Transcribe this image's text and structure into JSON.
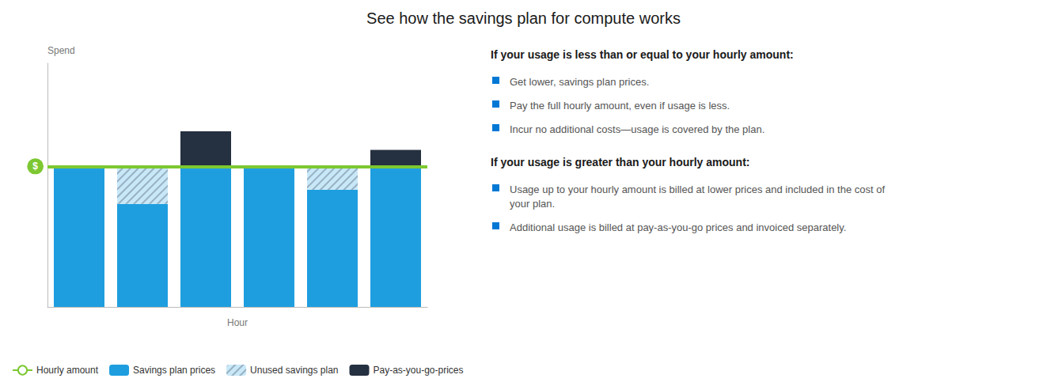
{
  "chart_data": {
    "type": "bar",
    "title": "See how the savings plan for compute works",
    "x_label": "Hour",
    "y_label": "Spend",
    "categories": [
      null,
      null,
      null,
      null,
      null,
      null
    ],
    "ylim": [
      0,
      5.2
    ],
    "tick_labels": false,
    "grid": false,
    "stacked": true,
    "legend": "bottom",
    "series": [
      {
        "name": "Hourly amount",
        "type": "hline",
        "color": "#7dc832",
        "value": 3.0
      },
      {
        "name": "Savings plan prices",
        "type": "bar",
        "color": "#1e9edf",
        "values": [
          3.0,
          2.2,
          3.0,
          3.0,
          2.5,
          3.0
        ]
      },
      {
        "name": "Unused savings plan",
        "type": "bar",
        "color": "#c8e8f8",
        "marker": "hatch",
        "values": [
          0.0,
          0.8,
          0.0,
          0.0,
          0.5,
          0.0
        ]
      },
      {
        "name": "Pay-as-you-go-prices",
        "type": "bar",
        "color": "#253040",
        "values": [
          0.0,
          0.0,
          0.75,
          0.0,
          0.0,
          0.35
        ]
      }
    ],
    "annotations": [
      {
        "text": "$"
      },
      {
        "heading": "If your usage is less than or equal to your hourly amount:",
        "bullets": [
          "Get lower, savings plan prices.",
          "Pay the full hourly amount, even if usage is less.",
          "Incur no additional costs—usage is covered by the plan."
        ]
      },
      {
        "heading": "If your usage is greater than your hourly amount:",
        "bullets": [
          "Usage up to your hourly amount is billed at lower prices and included in the cost of\nyour plan.",
          "Additional usage is billed at pay-as-you-go prices and invoiced separately."
        ]
      }
    ]
  }
}
